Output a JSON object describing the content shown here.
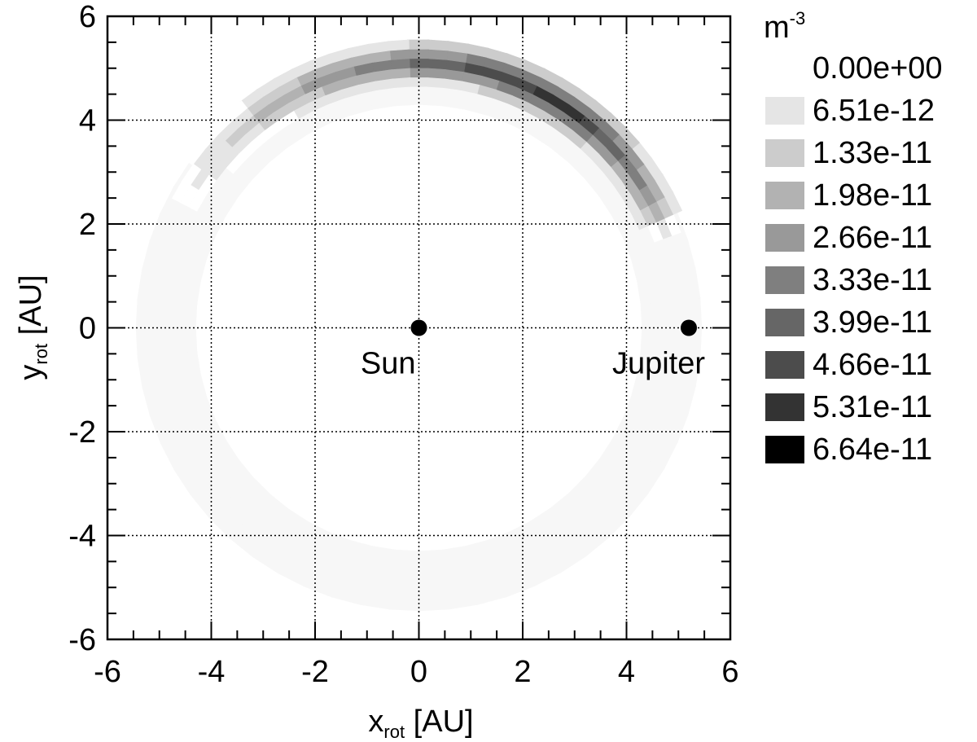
{
  "chart_data": {
    "type": "heatmap",
    "xlabel": {
      "base": "x",
      "sub": "rot",
      "unit": " [AU]"
    },
    "ylabel": {
      "base": "y",
      "sub": "rot",
      "unit": " [AU]"
    },
    "xlim": [
      -6,
      6
    ],
    "ylim": [
      -6,
      6
    ],
    "x_ticks": [
      -6,
      -4,
      -2,
      0,
      2,
      4,
      6
    ],
    "y_ticks": [
      -6,
      -4,
      -2,
      0,
      2,
      4,
      6
    ],
    "x_tick_labels": [
      "-6",
      "-4",
      "-2",
      "0",
      "2",
      "4",
      "6"
    ],
    "y_tick_labels": [
      "-6",
      "-4",
      "-2",
      "0",
      "2",
      "4",
      "6"
    ],
    "grid": true,
    "colorbar": {
      "unit": {
        "base": "m",
        "sup": "-3"
      },
      "levels": [
        "0.00e+00",
        "6.51e-12",
        "1.33e-11",
        "1.98e-11",
        "2.66e-11",
        "3.33e-11",
        "3.99e-11",
        "4.66e-11",
        "5.31e-11",
        "6.64e-11"
      ],
      "colors": [
        "#ffffff",
        "#e5e5e5",
        "#cccccc",
        "#b2b2b2",
        "#999999",
        "#7f7f7f",
        "#666666",
        "#4c4c4c",
        "#333333",
        "#000000"
      ]
    },
    "density_arc": {
      "radius_au": 5.2,
      "angle_start_deg": 20,
      "angle_end_deg": 150,
      "peak_angle_deg": 55,
      "peak_density": 6.2e-11,
      "faint_ring_density": 2e-12
    },
    "points": [
      {
        "label": "Sun",
        "x": 0,
        "y": 0
      },
      {
        "label": "Jupiter",
        "x": 5.2,
        "y": 0
      }
    ]
  }
}
